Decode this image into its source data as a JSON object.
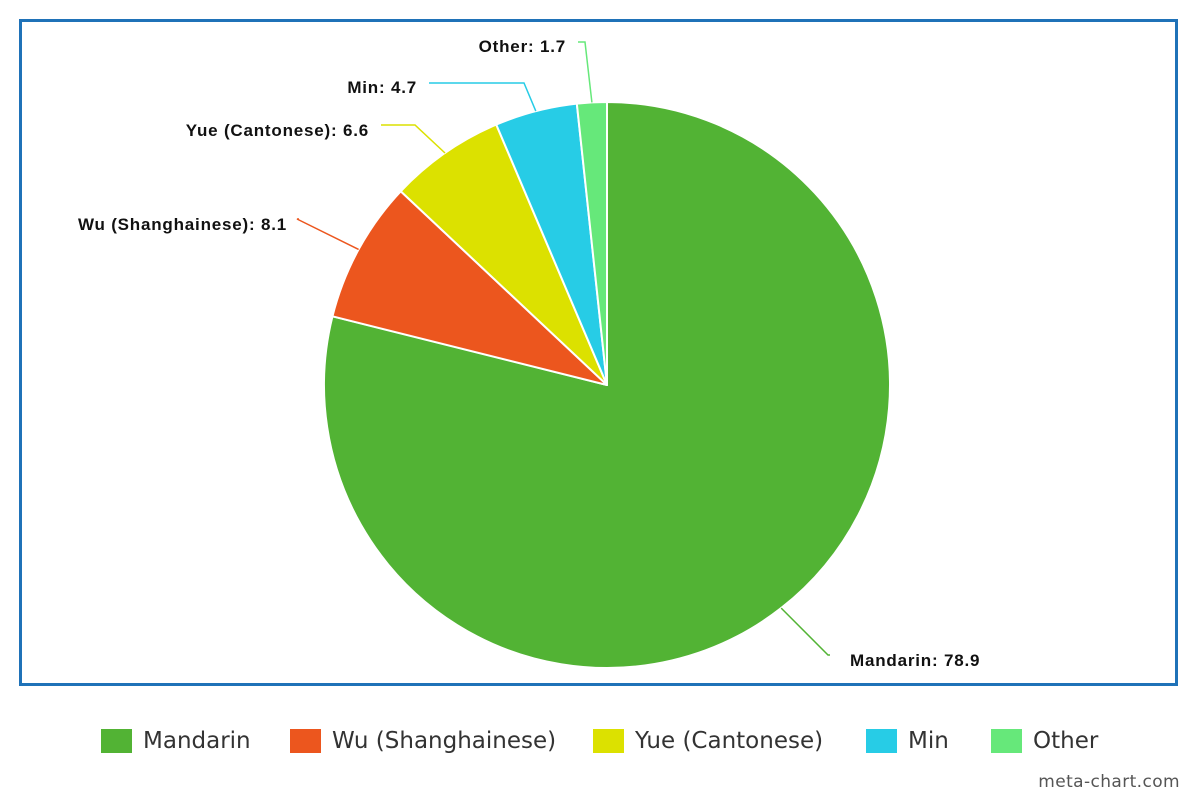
{
  "chart_data": {
    "type": "pie",
    "title": "",
    "slices": [
      {
        "label": "Mandarin",
        "value": 78.9,
        "color": "#52b334",
        "data_label": "Mandarin: 78.9"
      },
      {
        "label": "Wu (Shanghainese)",
        "value": 8.1,
        "color": "#ec561e",
        "data_label": "Wu (Shanghainese): 8.1"
      },
      {
        "label": "Yue (Cantonese)",
        "value": 6.6,
        "color": "#dce100",
        "data_label": "Yue (Cantonese): 6.6"
      },
      {
        "label": "Min",
        "value": 4.7,
        "color": "#27cce6",
        "data_label": "Min: 4.7"
      },
      {
        "label": "Other",
        "value": 1.7,
        "color": "#66e87a",
        "data_label": "Other: 1.7"
      }
    ],
    "legend_position": "bottom",
    "frame_color": "#1f72b8"
  },
  "legend": {
    "items": [
      {
        "label": "Mandarin",
        "color": "#52b334"
      },
      {
        "label": "Wu (Shanghainese)",
        "color": "#ec561e"
      },
      {
        "label": "Yue (Cantonese)",
        "color": "#dce100"
      },
      {
        "label": "Min",
        "color": "#27cce6"
      },
      {
        "label": "Other",
        "color": "#66e87a"
      }
    ]
  },
  "watermark": "meta-chart.com"
}
